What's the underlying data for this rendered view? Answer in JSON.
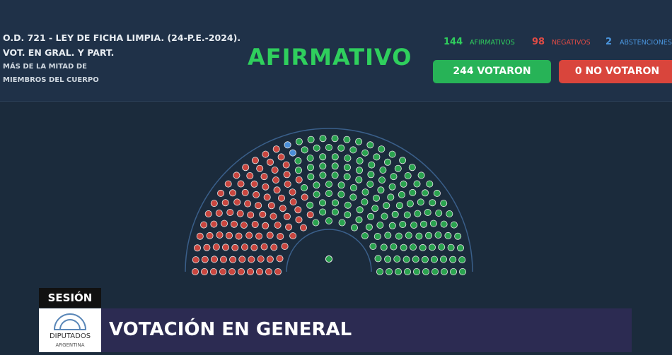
{
  "header": {
    "line1": "O.D. 721 - LEY DE FICHA LIMPIA. (24-P.E.-2024).",
    "line2": "VOT. EN GRAL. Y PART.",
    "line3": "MÁS DE LA MITAD DE",
    "line4": "MIEMBROS DEL CUERPO",
    "result": "AFIRMATIVO"
  },
  "tally": {
    "afirmativos": {
      "count": 144,
      "label": "AFIRMATIVOS"
    },
    "negativos": {
      "count": 98,
      "label": "NEGATIVOS"
    },
    "abstenciones": {
      "count": 2,
      "label": "ABSTENCIONES"
    }
  },
  "buttons": {
    "votaron": "244 VOTARON",
    "no_votaron": "0 NO VOTARON"
  },
  "footer": {
    "session": "SESIÓN",
    "title": "VOTACIÓN EN GENERAL",
    "logo_top": "DIPUTADOS",
    "logo_bottom": "ARGENTINA"
  }
}
